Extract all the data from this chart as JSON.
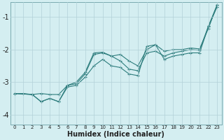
{
  "xlabel": "Humidex (Indice chaleur)",
  "background_color": "#d4eef1",
  "grid_color": "#b2d0d8",
  "line_color": "#2d7d7d",
  "xlim": [
    -0.5,
    23.5
  ],
  "ylim": [
    -4.3,
    -0.55
  ],
  "yticks": [
    -4,
    -3,
    -2,
    -1
  ],
  "xticks": [
    0,
    1,
    2,
    3,
    4,
    5,
    6,
    7,
    8,
    9,
    10,
    11,
    12,
    13,
    14,
    15,
    16,
    17,
    18,
    19,
    20,
    21,
    22,
    23
  ],
  "line1_x": [
    0,
    1,
    2,
    3,
    4,
    5,
    6,
    7,
    8,
    9,
    10,
    11,
    12,
    13,
    14,
    15,
    16,
    17,
    18,
    19,
    20,
    21,
    22,
    23
  ],
  "line1_y": [
    -3.35,
    -3.35,
    -3.38,
    -3.35,
    -3.38,
    -3.38,
    -3.1,
    -3.05,
    -2.75,
    -2.15,
    -2.1,
    -2.2,
    -2.15,
    -2.35,
    -2.5,
    -2.0,
    -1.85,
    -2.05,
    -2.0,
    -2.0,
    -1.95,
    -1.98,
    -1.35,
    -0.62
  ],
  "line2_x": [
    0,
    2,
    3,
    4,
    5,
    6,
    7,
    8,
    9,
    10,
    11,
    12,
    13,
    14,
    15,
    16,
    17,
    18,
    19,
    20,
    21,
    22,
    23
  ],
  "line2_y": [
    -3.35,
    -3.38,
    -3.6,
    -3.5,
    -3.6,
    -3.1,
    -3.0,
    -2.7,
    -2.1,
    -2.08,
    -2.2,
    -2.35,
    -2.6,
    -2.65,
    -2.1,
    -2.05,
    -2.2,
    -2.1,
    -2.05,
    -2.0,
    -2.02,
    -1.28,
    -0.62
  ],
  "line3_x": [
    0,
    2,
    3,
    4,
    5,
    6,
    7,
    8,
    9,
    10,
    11,
    12,
    13,
    14,
    15,
    16,
    17,
    18,
    19,
    20,
    21,
    22,
    23
  ],
  "line3_y": [
    -3.35,
    -3.38,
    -3.6,
    -3.5,
    -3.6,
    -3.15,
    -3.1,
    -2.85,
    -2.5,
    -2.3,
    -2.5,
    -2.55,
    -2.75,
    -2.8,
    -1.9,
    -1.85,
    -2.3,
    -2.2,
    -2.15,
    -2.1,
    -2.1,
    -1.3,
    -0.68
  ]
}
